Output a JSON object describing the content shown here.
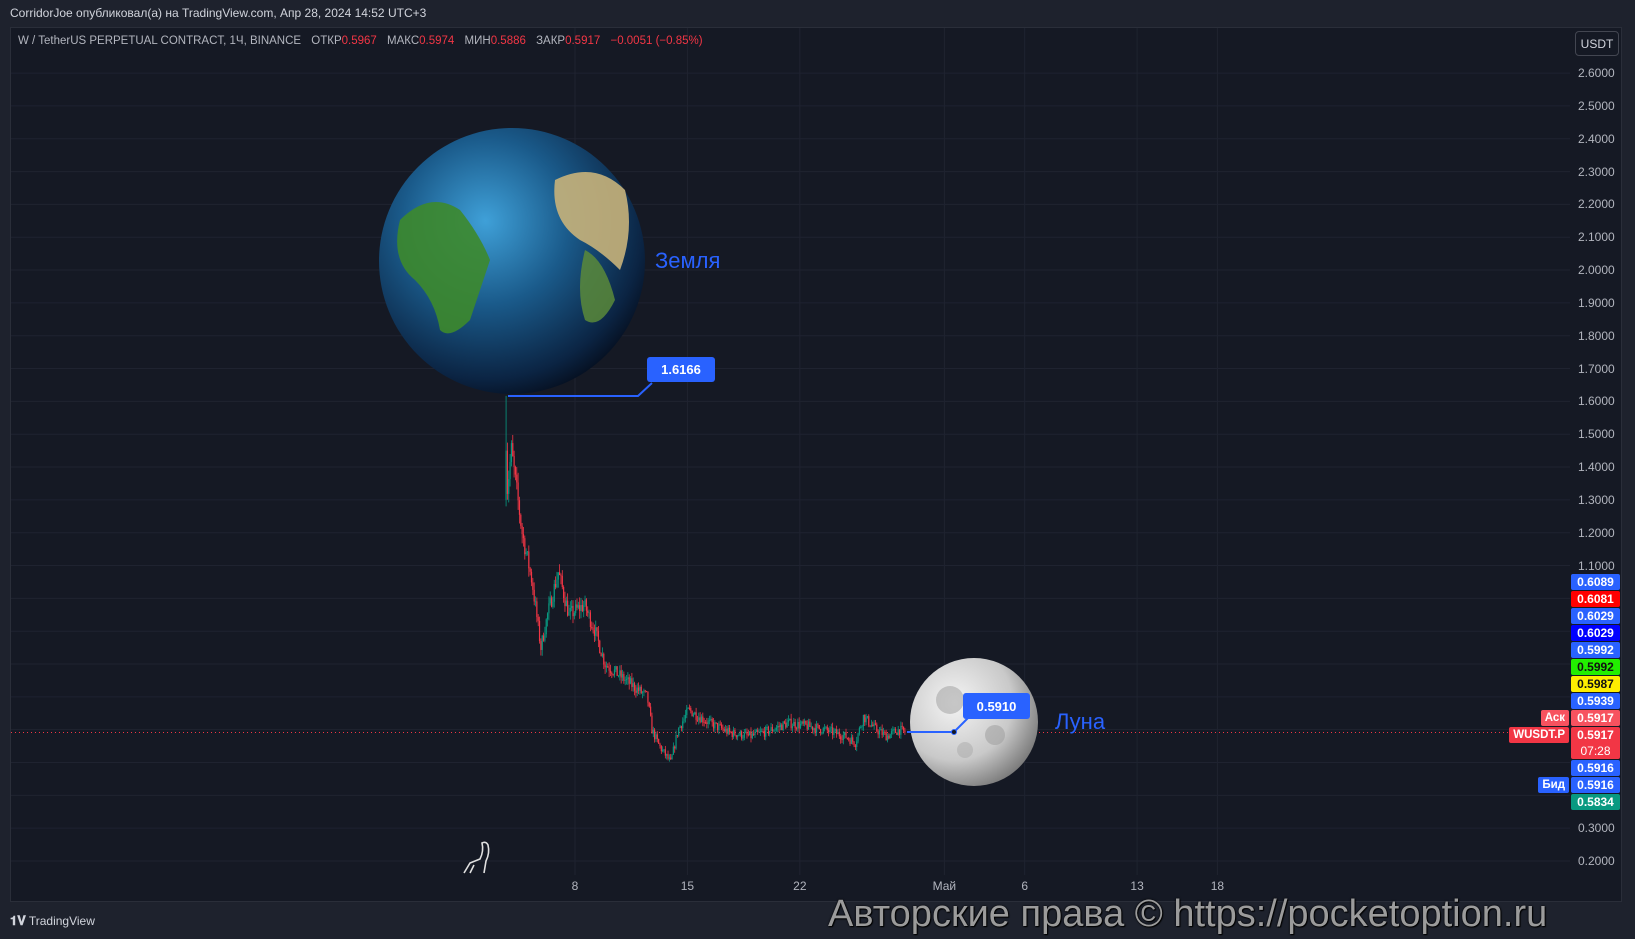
{
  "header": {
    "published": "CorridorJoe опубликовал(а) на TradingView.com, Апр 28, 2024 14:52 UTC+3"
  },
  "legend": {
    "symbol": "W / TetherUS PERPETUAL CONTRACT, 1Ч, BINANCE",
    "open_label": "ОТКР",
    "open": "0.5967",
    "high_label": "МАКС",
    "high": "0.5974",
    "low_label": "МИН",
    "low": "0.5886",
    "close_label": "ЗАКР",
    "close": "0.5917",
    "change": "−0.0051 (−0.85%)"
  },
  "price_axis": {
    "currency_button": "USDT",
    "ticks": [
      "2.6000",
      "2.5000",
      "2.4000",
      "2.3000",
      "2.2000",
      "2.1000",
      "2.0000",
      "1.9000",
      "1.8000",
      "1.7000",
      "1.6000",
      "1.5000",
      "1.4000",
      "1.3000",
      "1.2000",
      "1.1000",
      "0.3000",
      "0.2000"
    ],
    "badges": [
      {
        "value": "0.6089",
        "color": "#2962ff"
      },
      {
        "value": "0.6081",
        "color": "#ff0000"
      },
      {
        "value": "0.6029",
        "color": "#2962ff"
      },
      {
        "value": "0.6029",
        "color": "#0000ff"
      },
      {
        "value": "0.5992",
        "color": "#2962ff"
      },
      {
        "value": "0.5992",
        "color": "#22ee00",
        "dark": true
      },
      {
        "value": "0.5987",
        "color": "#ffee00",
        "dark": true
      },
      {
        "value": "0.5939",
        "color": "#2962ff"
      },
      {
        "value": "0.5917",
        "color": "#f7525f",
        "tag": "Аск"
      },
      {
        "value": "0.5917",
        "color": "#f23645",
        "tag": "WUSDT.P",
        "countdown": "07:28"
      },
      {
        "value": "0.5916",
        "color": "#2962ff"
      },
      {
        "value": "0.5916",
        "color": "#2962ff",
        "tag": "Бид"
      },
      {
        "value": "0.5834",
        "color": "#089981"
      }
    ]
  },
  "time_axis": {
    "ticks": [
      {
        "label": "8",
        "day": 8
      },
      {
        "label": "15",
        "day": 15
      },
      {
        "label": "22",
        "day": 22
      },
      {
        "label": "Май",
        "day": 31
      },
      {
        "label": "6",
        "day": 36
      },
      {
        "label": "13",
        "day": 43
      },
      {
        "label": "18",
        "day": 48
      }
    ]
  },
  "annotations": {
    "earth_label": "Земля",
    "earth_price": "1.6166",
    "moon_label": "Луна",
    "moon_price": "0.5910"
  },
  "colors": {
    "up": "#089981",
    "down": "#f23645",
    "accent": "#2962ff",
    "background": "#151924"
  },
  "footer": {
    "logo": "TradingView",
    "watermark": "Авторские права © https://pocketoption.ru"
  },
  "chart_data": {
    "type": "candlestick",
    "interval": "1h",
    "ylim": [
      0.2,
      2.6
    ],
    "grid": true,
    "peak": 1.6166,
    "last": 0.5917,
    "points": [
      [
        "2024-04-03 17:00",
        1.3
      ],
      [
        "2024-04-04 01:00",
        1.45
      ],
      [
        "2024-04-04 17:00",
        1.2
      ],
      [
        "2024-04-05 08:00",
        1.05
      ],
      [
        "2024-04-05 21:00",
        0.85
      ],
      [
        "2024-04-06 07:00",
        0.95
      ],
      [
        "2024-04-06 23:00",
        1.08
      ],
      [
        "2024-04-07 15:00",
        0.95
      ],
      [
        "2024-04-08 14:00",
        0.98
      ],
      [
        "2024-04-09 06:00",
        0.9
      ],
      [
        "2024-04-09 21:00",
        0.8
      ],
      [
        "2024-04-11 04:00",
        0.75
      ],
      [
        "2024-04-12 12:00",
        0.7
      ],
      [
        "2024-04-12 19:00",
        0.6
      ],
      [
        "2024-04-13 06:00",
        0.55
      ],
      [
        "2024-04-13 23:00",
        0.5
      ],
      [
        "2024-04-14 10:00",
        0.6
      ],
      [
        "2024-04-15 02:00",
        0.66
      ],
      [
        "2024-04-16 09:00",
        0.62
      ],
      [
        "2024-04-17 16:00",
        0.59
      ],
      [
        "2024-04-18 23:00",
        0.58
      ],
      [
        "2024-04-20 06:00",
        0.6
      ],
      [
        "2024-04-21 06:00",
        0.62
      ],
      [
        "2024-04-22 13:00",
        0.61
      ],
      [
        "2024-04-23 12:00",
        0.6
      ],
      [
        "2024-04-24 20:00",
        0.58
      ],
      [
        "2024-04-25 11:00",
        0.56
      ],
      [
        "2024-04-25 23:00",
        0.64
      ],
      [
        "2024-04-26 18:00",
        0.6
      ],
      [
        "2024-04-27 10:00",
        0.58
      ],
      [
        "2024-04-28 04:00",
        0.6
      ],
      [
        "2024-04-28 14:00",
        0.5917
      ]
    ]
  }
}
